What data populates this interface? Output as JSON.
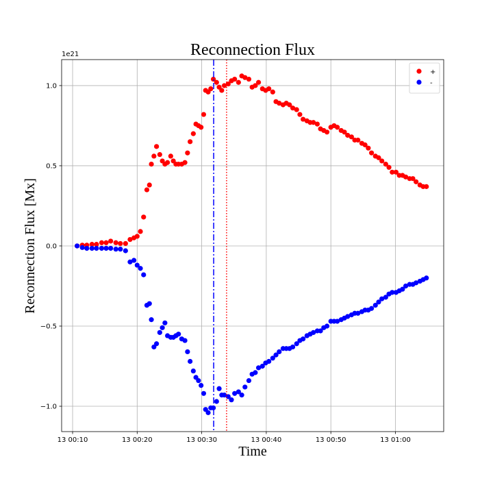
{
  "chart_data": {
    "type": "scatter",
    "title": "Reconnection Flux",
    "xlabel": "Time",
    "ylabel": "Reconnection Flux [Mx]",
    "y_offset_label": "1e21",
    "xlim": [
      8.3,
      67.48
    ],
    "ylim": [
      -1.158,
      1.162
    ],
    "xticks": [
      {
        "value": 10,
        "label": "13 00:10"
      },
      {
        "value": 20,
        "label": "13 00:20"
      },
      {
        "value": 30,
        "label": "13 00:30"
      },
      {
        "value": 40,
        "label": "13 00:40"
      },
      {
        "value": 50,
        "label": "13 00:50"
      },
      {
        "value": 60,
        "label": "13 01:00"
      }
    ],
    "yticks": [
      {
        "value": -1.0,
        "label": "−1.0"
      },
      {
        "value": -0.5,
        "label": "−0.5"
      },
      {
        "value": 0.0,
        "label": "0.0"
      },
      {
        "value": 0.5,
        "label": "0.5"
      },
      {
        "value": 1.0,
        "label": "1.0"
      }
    ],
    "grid": true,
    "legend": "upper right",
    "vlines": [
      {
        "x": 31.85,
        "color": "#0000ff",
        "style": "dashdot"
      },
      {
        "x": 33.85,
        "color": "#ff0000",
        "style": "dotted"
      }
    ],
    "x": [
      10.7,
      11.5,
      12.2,
      13.0,
      13.7,
      14.5,
      15.2,
      15.9,
      16.7,
      17.4,
      18.2,
      18.9,
      19.5,
      20.0,
      20.5,
      21.0,
      21.5,
      21.9,
      22.2,
      22.6,
      23.0,
      23.5,
      23.9,
      24.3,
      24.7,
      25.2,
      25.6,
      26.0,
      26.4,
      26.9,
      27.4,
      27.8,
      28.2,
      28.7,
      29.1,
      29.5,
      29.9,
      30.3,
      30.6,
      31.0,
      31.4,
      31.8,
      32.3,
      32.7,
      33.1,
      33.5,
      34.1,
      34.6,
      35.1,
      35.7,
      36.2,
      36.7,
      37.3,
      37.8,
      38.3,
      38.8,
      39.4,
      39.9,
      40.4,
      41.0,
      41.5,
      42.0,
      42.6,
      43.1,
      43.6,
      44.1,
      44.7,
      45.2,
      45.7,
      46.3,
      46.8,
      47.3,
      47.9,
      48.4,
      48.9,
      49.4,
      50.0,
      50.5,
      51.0,
      51.6,
      52.1,
      52.6,
      53.2,
      53.7,
      54.2,
      54.8,
      55.3,
      55.8,
      56.3,
      56.9,
      57.4,
      57.9,
      58.5,
      59.0,
      59.5,
      60.1,
      60.6,
      61.1,
      61.6,
      62.2,
      62.7,
      63.2,
      63.8,
      64.3,
      64.8
    ],
    "series": [
      {
        "name": "+",
        "color": "#ff0000",
        "values": [
          0.0,
          0.005,
          0.005,
          0.01,
          0.01,
          0.02,
          0.02,
          0.03,
          0.02,
          0.015,
          0.015,
          0.04,
          0.05,
          0.06,
          0.09,
          0.18,
          0.35,
          0.38,
          0.51,
          0.56,
          0.62,
          0.57,
          0.53,
          0.51,
          0.52,
          0.56,
          0.53,
          0.51,
          0.51,
          0.51,
          0.52,
          0.58,
          0.65,
          0.7,
          0.76,
          0.75,
          0.74,
          0.82,
          0.97,
          0.96,
          0.98,
          1.04,
          1.02,
          0.99,
          0.97,
          1.0,
          1.01,
          1.03,
          1.04,
          1.02,
          1.06,
          1.05,
          1.04,
          0.99,
          1.0,
          1.02,
          0.98,
          0.97,
          0.98,
          0.96,
          0.9,
          0.89,
          0.88,
          0.89,
          0.88,
          0.86,
          0.85,
          0.82,
          0.79,
          0.78,
          0.77,
          0.77,
          0.76,
          0.73,
          0.72,
          0.71,
          0.74,
          0.75,
          0.74,
          0.72,
          0.71,
          0.69,
          0.68,
          0.66,
          0.66,
          0.64,
          0.63,
          0.61,
          0.58,
          0.56,
          0.55,
          0.53,
          0.51,
          0.49,
          0.46,
          0.46,
          0.44,
          0.44,
          0.43,
          0.42,
          0.42,
          0.4,
          0.38,
          0.37,
          0.37
        ]
      },
      {
        "name": "-",
        "color": "#0000ff",
        "values": [
          0.0,
          -0.01,
          -0.015,
          -0.015,
          -0.015,
          -0.015,
          -0.015,
          -0.015,
          -0.02,
          -0.02,
          -0.03,
          -0.1,
          -0.09,
          -0.12,
          -0.14,
          -0.18,
          -0.37,
          -0.36,
          -0.46,
          -0.63,
          -0.61,
          -0.54,
          -0.51,
          -0.48,
          -0.56,
          -0.57,
          -0.57,
          -0.56,
          -0.55,
          -0.58,
          -0.59,
          -0.66,
          -0.72,
          -0.78,
          -0.82,
          -0.84,
          -0.87,
          -0.92,
          -1.02,
          -1.04,
          -1.01,
          -1.01,
          -0.97,
          -0.89,
          -0.93,
          -0.93,
          -0.94,
          -0.96,
          -0.92,
          -0.91,
          -0.93,
          -0.88,
          -0.84,
          -0.8,
          -0.79,
          -0.76,
          -0.75,
          -0.73,
          -0.72,
          -0.7,
          -0.68,
          -0.66,
          -0.64,
          -0.64,
          -0.64,
          -0.63,
          -0.61,
          -0.59,
          -0.58,
          -0.56,
          -0.55,
          -0.54,
          -0.53,
          -0.53,
          -0.51,
          -0.5,
          -0.47,
          -0.47,
          -0.47,
          -0.46,
          -0.45,
          -0.44,
          -0.43,
          -0.42,
          -0.42,
          -0.41,
          -0.4,
          -0.4,
          -0.39,
          -0.37,
          -0.35,
          -0.33,
          -0.32,
          -0.3,
          -0.29,
          -0.29,
          -0.28,
          -0.27,
          -0.25,
          -0.24,
          -0.24,
          -0.23,
          -0.22,
          -0.21,
          -0.2
        ]
      }
    ]
  }
}
